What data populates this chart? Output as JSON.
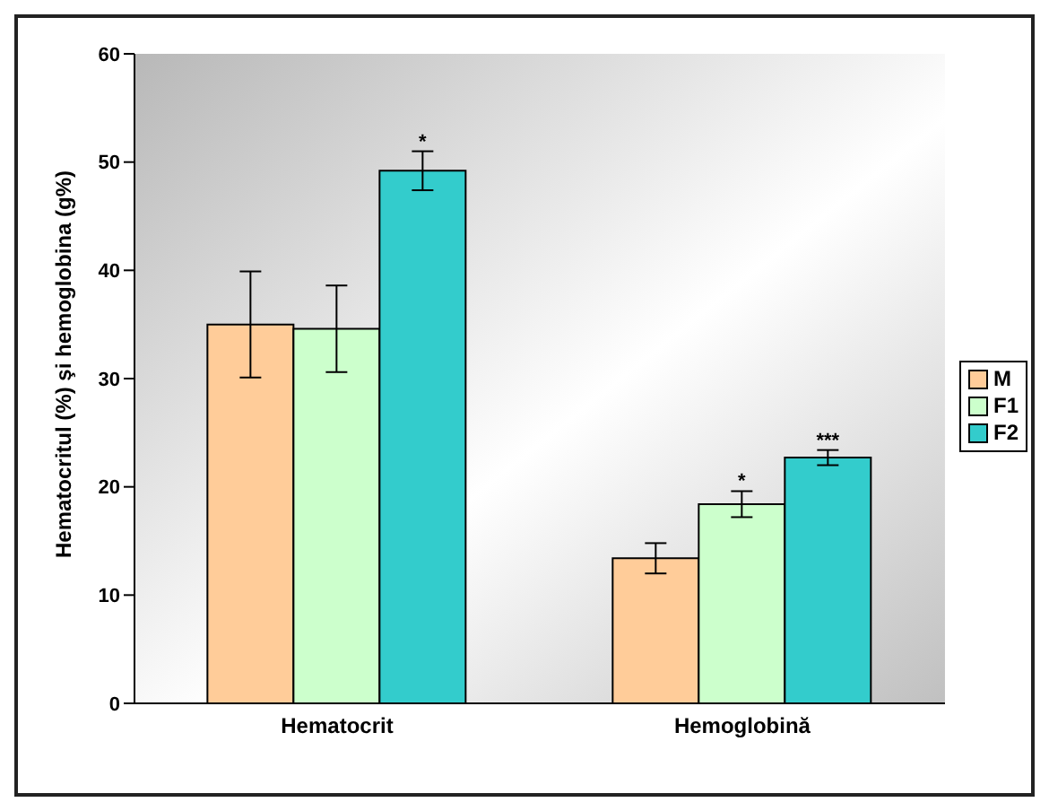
{
  "chart_data": {
    "type": "bar",
    "ylabel": "Hematocritul (%) şi hemoglobina (g%)",
    "categories": [
      "Hematocrit",
      "Hemoglobină"
    ],
    "series": [
      {
        "name": "M",
        "color": "#ffcc99",
        "values": [
          35.0,
          13.4
        ],
        "errors": [
          4.9,
          1.4
        ]
      },
      {
        "name": "F1",
        "color": "#ccffcc",
        "values": [
          34.6,
          18.4
        ],
        "errors": [
          4.0,
          1.2
        ],
        "value_labels": [
          null,
          "*"
        ]
      },
      {
        "name": "F2",
        "color": "#33cccc",
        "values": [
          49.2,
          22.7
        ],
        "errors": [
          1.8,
          0.7
        ],
        "value_labels": [
          "*",
          "***"
        ]
      }
    ],
    "ylim": [
      0,
      60
    ],
    "yticks": [
      0,
      10,
      20,
      30,
      40,
      50,
      60
    ],
    "legend": "right"
  }
}
